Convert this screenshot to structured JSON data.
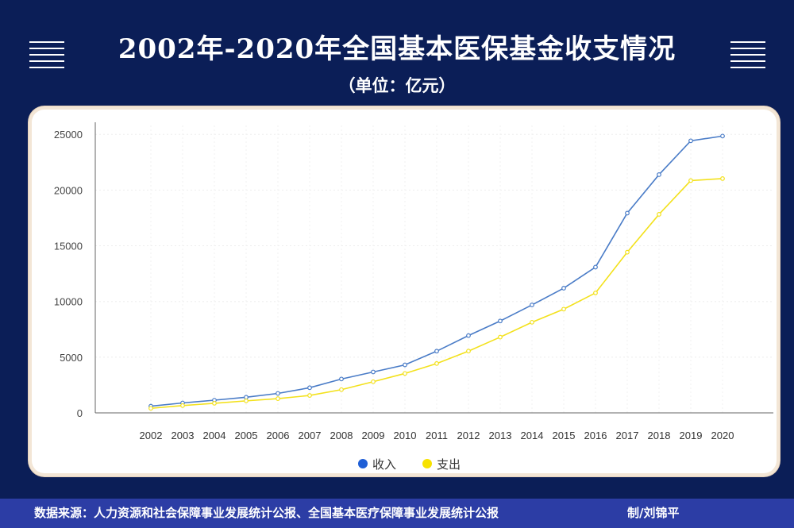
{
  "header": {
    "title": "2002年-2020年全国基本医保基金收支情况",
    "unit": "（单位：亿元）"
  },
  "footer": {
    "source": "数据来源：人力资源和社会保障事业发展统计公报、全国基本医疗保障事业发展统计公报",
    "author": "制/刘锦平"
  },
  "chart_data": {
    "type": "line",
    "title": "2002年-2020年全国基本医保基金收支情况",
    "x": [
      "2002",
      "2003",
      "2004",
      "2005",
      "2006",
      "2007",
      "2008",
      "2009",
      "2010",
      "2011",
      "2012",
      "2013",
      "2014",
      "2015",
      "2016",
      "2017",
      "2018",
      "2019",
      "2020"
    ],
    "series": [
      {
        "name": "收入",
        "color": "#4a7cc7",
        "values": [
          600,
          890,
          1141,
          1405,
          1747,
          2257,
          3040,
          3672,
          4309,
          5539,
          6939,
          8248,
          9687,
          11193,
          13084,
          17932,
          21384,
          24421,
          24846
        ]
      },
      {
        "name": "支出",
        "color": "#f3e11c",
        "values": [
          409,
          654,
          862,
          1079,
          1277,
          1562,
          2084,
          2797,
          3538,
          4431,
          5544,
          6801,
          8134,
          9312,
          10767,
          14422,
          17822,
          20854,
          21032
        ]
      }
    ],
    "yticks": [
      0,
      5000,
      10000,
      15000,
      20000,
      25000
    ],
    "ylim": [
      0,
      25800
    ],
    "grid": true,
    "legend": {
      "position": "bottom",
      "markers": {
        "收入": "#1f5fd6",
        "支出": "#f7e200"
      }
    }
  }
}
